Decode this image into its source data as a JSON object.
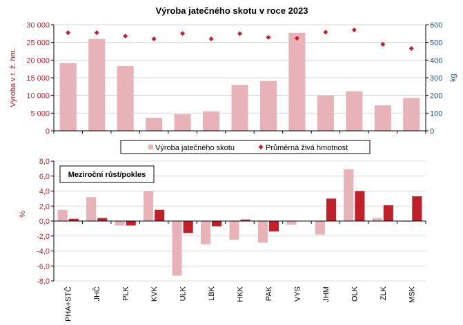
{
  "chart_data": [
    {
      "type": "bar",
      "title": "Výroba jatečného skotu  v roce 2023",
      "categories": [
        "PHA+STČ",
        "JHČ",
        "PLK",
        "KVK",
        "ULK",
        "LBK",
        "HKK",
        "PAK",
        "VYS",
        "JHM",
        "OLK",
        "ZLK",
        "MSK"
      ],
      "ylabel_left": "Výroba v t. ž. hm.",
      "ylabel_right": "kg",
      "ylim_left": [
        0,
        30000
      ],
      "ylim_right": [
        0,
        600
      ],
      "yticks_left": [
        "0",
        "5 000",
        "10 000",
        "15 000",
        "20 000",
        "25 000",
        "30 000"
      ],
      "yticks_right": [
        "0",
        "100",
        "200",
        "300",
        "400",
        "500",
        "600"
      ],
      "series": [
        {
          "name": "Výroba jatečného skotu",
          "kind": "bar",
          "axis": "left",
          "color": "#e8b3b8",
          "values": [
            19200,
            26000,
            18300,
            3700,
            4700,
            5500,
            13000,
            14100,
            27700,
            10000,
            11200,
            7200,
            9300
          ]
        },
        {
          "name": "Průměrná živá hmotnost",
          "kind": "marker",
          "axis": "right",
          "color": "#c0202a",
          "values": [
            555,
            555,
            536,
            520,
            551,
            520,
            550,
            529,
            524,
            558,
            571,
            490,
            466
          ]
        }
      ]
    },
    {
      "type": "bar",
      "title": "Meziroční růst/pokles",
      "categories": [
        "PHA+STČ",
        "JHČ",
        "PLK",
        "KVK",
        "ULK",
        "LBK",
        "HKK",
        "PAK",
        "VYS",
        "JHM",
        "OLK",
        "ZLK",
        "MSK"
      ],
      "ylabel": "%",
      "ylim": [
        -8,
        8
      ],
      "yticks": [
        "8,0",
        "6,0",
        "4,0",
        "2,0",
        "0,0",
        "-2,0",
        "-4,0",
        "-6,0",
        "-8,0"
      ],
      "series": [
        {
          "name": "Výroba jatečného skotu",
          "color": "#e8b3b8",
          "values": [
            1.5,
            3.2,
            -0.6,
            4.0,
            -7.3,
            -3.1,
            -2.5,
            -2.9,
            -0.5,
            -1.8,
            6.9,
            0.4,
            -0.1
          ]
        },
        {
          "name": "Průměrná živá hmotnost",
          "color": "#c0202a",
          "values": [
            0.3,
            0.4,
            -0.6,
            1.5,
            -1.6,
            -0.7,
            0.2,
            -1.4,
            0.0,
            3.0,
            4.0,
            2.1,
            3.3
          ]
        }
      ]
    }
  ]
}
